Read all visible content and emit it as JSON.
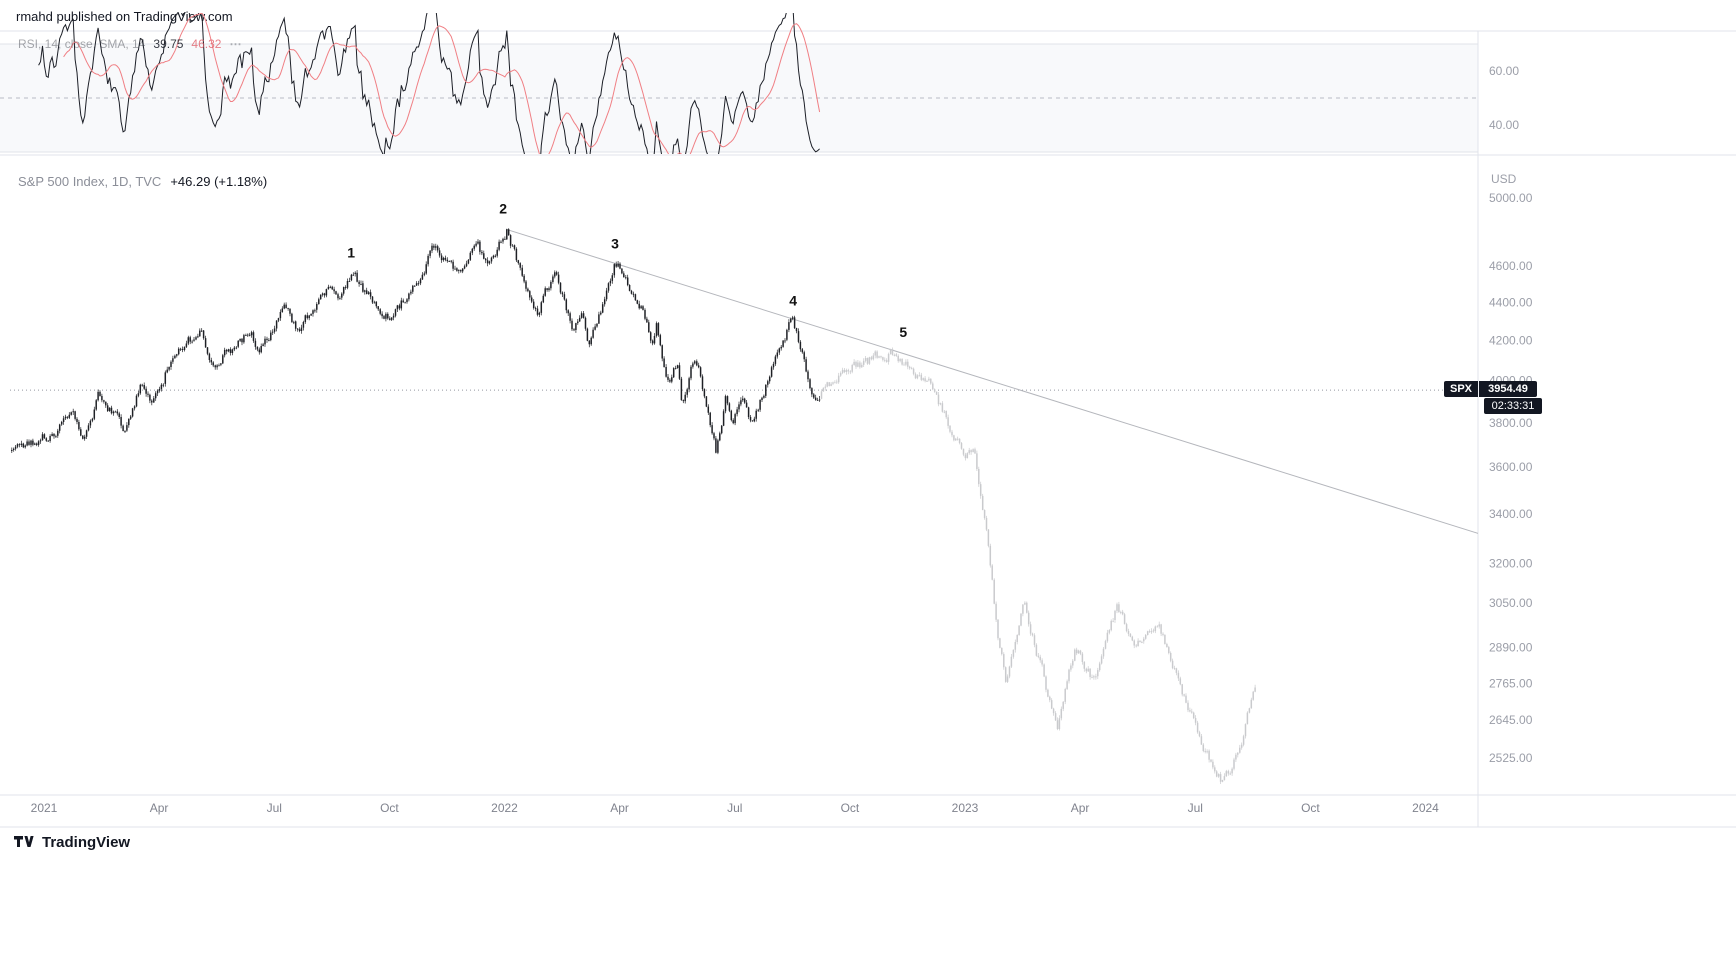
{
  "page": {
    "header_text": "rmahd published on TradingView.com",
    "footer_brand": "TradingView"
  },
  "rsi_panel": {
    "legend": {
      "title": "RSI, 14, close, SMA, 14",
      "value_main": "39.75",
      "value_sma": "46.32"
    }
  },
  "main_panel": {
    "legend": {
      "title": "S&P 500 Index, 1D, TVC",
      "change": "+46.29 (+1.18%)"
    },
    "axis_currency": "USD",
    "price_label": {
      "symbol": "SPX",
      "price": "3954.49",
      "countdown": "02:33:31"
    }
  },
  "chart_data": {
    "type": "candlestick",
    "title": "S&P 500 Index, 1D, TVC",
    "symbol": "SPX",
    "interval": "1D",
    "exchange": "TVC",
    "currency": "USD",
    "scale": "log",
    "last_price": 3954.49,
    "change": "+46.29 (+1.18%)",
    "countdown": "02:33:31",
    "grid": "off",
    "legend_position": "top-left",
    "price_axis_ticks": [
      {
        "label": "5000.00",
        "value": 5000
      },
      {
        "label": "4600.00",
        "value": 4600
      },
      {
        "label": "4400.00",
        "value": 4400
      },
      {
        "label": "4200.00",
        "value": 4200
      },
      {
        "label": "4000.00",
        "value": 4000
      },
      {
        "label": "3800.00",
        "value": 3800
      },
      {
        "label": "3600.00",
        "value": 3600
      },
      {
        "label": "3400.00",
        "value": 3400
      },
      {
        "label": "3200.00",
        "value": 3200
      },
      {
        "label": "3050.00",
        "value": 3050
      },
      {
        "label": "2890.00",
        "value": 2890
      },
      {
        "label": "2765.00",
        "value": 2765
      },
      {
        "label": "2645.00",
        "value": 2645
      },
      {
        "label": "2525.00",
        "value": 2525
      }
    ],
    "time_axis_ticks": [
      {
        "label": "2021",
        "t": 2021.0
      },
      {
        "label": "Apr",
        "t": 2021.25
      },
      {
        "label": "Jul",
        "t": 2021.5
      },
      {
        "label": "Oct",
        "t": 2021.75
      },
      {
        "label": "2022",
        "t": 2022.0
      },
      {
        "label": "Apr",
        "t": 2022.25
      },
      {
        "label": "Jul",
        "t": 2022.5
      },
      {
        "label": "Oct",
        "t": 2022.75
      },
      {
        "label": "2023",
        "t": 2023.0
      },
      {
        "label": "Apr",
        "t": 2023.25
      },
      {
        "label": "Jul",
        "t": 2023.5
      },
      {
        "label": "Oct",
        "t": 2023.75
      },
      {
        "label": "2024",
        "t": 2024.0
      }
    ],
    "series_start": 2020.93,
    "projection_start": 2022.688,
    "projection_end": 2023.63,
    "price_anchors": [
      [
        2020.93,
        3690
      ],
      [
        2021.02,
        3748
      ],
      [
        2021.065,
        3852
      ],
      [
        2021.085,
        3716
      ],
      [
        2021.12,
        3934
      ],
      [
        2021.14,
        3878
      ],
      [
        2021.175,
        3772
      ],
      [
        2021.21,
        3968
      ],
      [
        2021.235,
        3898
      ],
      [
        2021.29,
        4168
      ],
      [
        2021.345,
        4232
      ],
      [
        2021.365,
        4062
      ],
      [
        2021.45,
        4252
      ],
      [
        2021.467,
        4166
      ],
      [
        2021.53,
        4374
      ],
      [
        2021.55,
        4262
      ],
      [
        2021.62,
        4468
      ],
      [
        2021.637,
        4406
      ],
      [
        2021.672,
        4540
      ],
      [
        2021.7,
        4448
      ],
      [
        2021.755,
        4302
      ],
      [
        2021.82,
        4572
      ],
      [
        2021.845,
        4700
      ],
      [
        2021.87,
        4632
      ],
      [
        2021.91,
        4570
      ],
      [
        2021.94,
        4710
      ],
      [
        2021.965,
        4572
      ],
      [
        2022.005,
        4796
      ],
      [
        2022.07,
        4330
      ],
      [
        2022.11,
        4586
      ],
      [
        2022.15,
        4230
      ],
      [
        2022.17,
        4362
      ],
      [
        2022.185,
        4172
      ],
      [
        2022.24,
        4630
      ],
      [
        2022.3,
        4392
      ],
      [
        2022.32,
        4180
      ],
      [
        2022.33,
        4286
      ],
      [
        2022.355,
        3994
      ],
      [
        2022.375,
        4086
      ],
      [
        2022.385,
        3906
      ],
      [
        2022.415,
        4132
      ],
      [
        2022.46,
        3668
      ],
      [
        2022.48,
        3912
      ],
      [
        2022.495,
        3788
      ],
      [
        2022.515,
        3902
      ],
      [
        2022.535,
        3794
      ],
      [
        2022.575,
        4012
      ],
      [
        2022.625,
        4306
      ],
      [
        2022.675,
        3908
      ],
      [
        2022.688,
        3954.49
      ],
      [
        2022.73,
        4042
      ],
      [
        2022.78,
        4092
      ],
      [
        2022.85,
        4146
      ],
      [
        2022.88,
        4060
      ],
      [
        2022.92,
        3988
      ],
      [
        2022.96,
        3832
      ],
      [
        2023.0,
        3622
      ],
      [
        2023.02,
        3698
      ],
      [
        2023.05,
        3296
      ],
      [
        2023.07,
        2952
      ],
      [
        2023.09,
        2768
      ],
      [
        2023.13,
        3048
      ],
      [
        2023.16,
        2852
      ],
      [
        2023.2,
        2612
      ],
      [
        2023.24,
        2888
      ],
      [
        2023.28,
        2772
      ],
      [
        2023.33,
        3042
      ],
      [
        2023.37,
        2892
      ],
      [
        2023.42,
        2978
      ],
      [
        2023.47,
        2748
      ],
      [
        2023.52,
        2558
      ],
      [
        2023.56,
        2452
      ],
      [
        2023.6,
        2562
      ],
      [
        2023.63,
        2758
      ]
    ],
    "wave_labels": [
      {
        "label": "1",
        "t": 2021.667,
        "price": 4650
      },
      {
        "label": "2",
        "t": 2021.997,
        "price": 4905
      },
      {
        "label": "3",
        "t": 2022.24,
        "price": 4700
      },
      {
        "label": "4",
        "t": 2022.627,
        "price": 4385
      },
      {
        "label": "5",
        "t": 2022.866,
        "price": 4220
      }
    ],
    "trendline": {
      "from": [
        2022.005,
        4810
      ],
      "to": [
        2024.115,
        3320
      ]
    },
    "rsi": {
      "period": 14,
      "sma_period": 14,
      "last": 39.75,
      "sma_last": 46.32,
      "levels": {
        "upper": 70,
        "middle": 50,
        "lower": 30
      },
      "axis_ticks": [
        {
          "label": "60.00",
          "value": 60
        },
        {
          "label": "40.00",
          "value": 40
        }
      ]
    },
    "colors": {
      "candle": "#1e2025",
      "projection": "#c9cacd",
      "trendline": "#b4b6bc",
      "rsi_line": "#1c1f27",
      "rsi_sma": "#f07f84",
      "rsi_band": "#f8f9fb",
      "current_price_line": "#9598a1",
      "badge_bg": "#131722",
      "axis_text": "#9b9ea8"
    }
  }
}
